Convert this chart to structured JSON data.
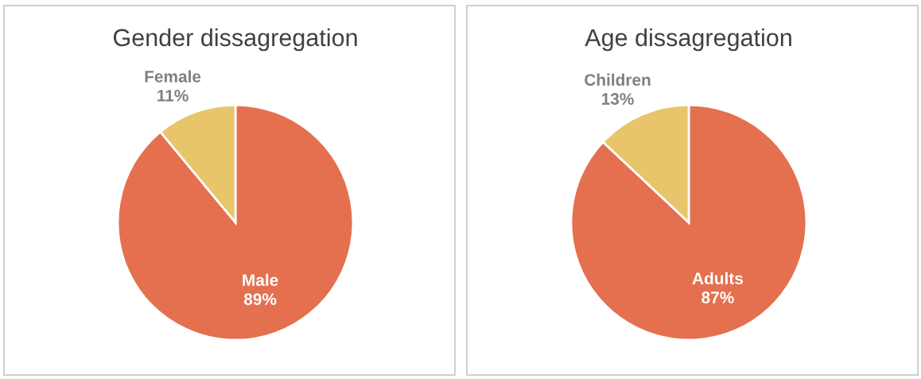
{
  "chart_data": [
    {
      "type": "pie",
      "title": "Gender dissagregation",
      "categories": [
        "Male",
        "Female"
      ],
      "values": [
        89,
        11
      ],
      "value_labels": [
        "89%",
        "11%"
      ],
      "colors": [
        "#e4704f",
        "#e8c46a"
      ]
    },
    {
      "type": "pie",
      "title": "Age dissagregation",
      "categories": [
        "Adults",
        "Children"
      ],
      "values": [
        87,
        13
      ],
      "value_labels": [
        "87%",
        "13%"
      ],
      "colors": [
        "#e4704f",
        "#e8c46a"
      ]
    }
  ]
}
